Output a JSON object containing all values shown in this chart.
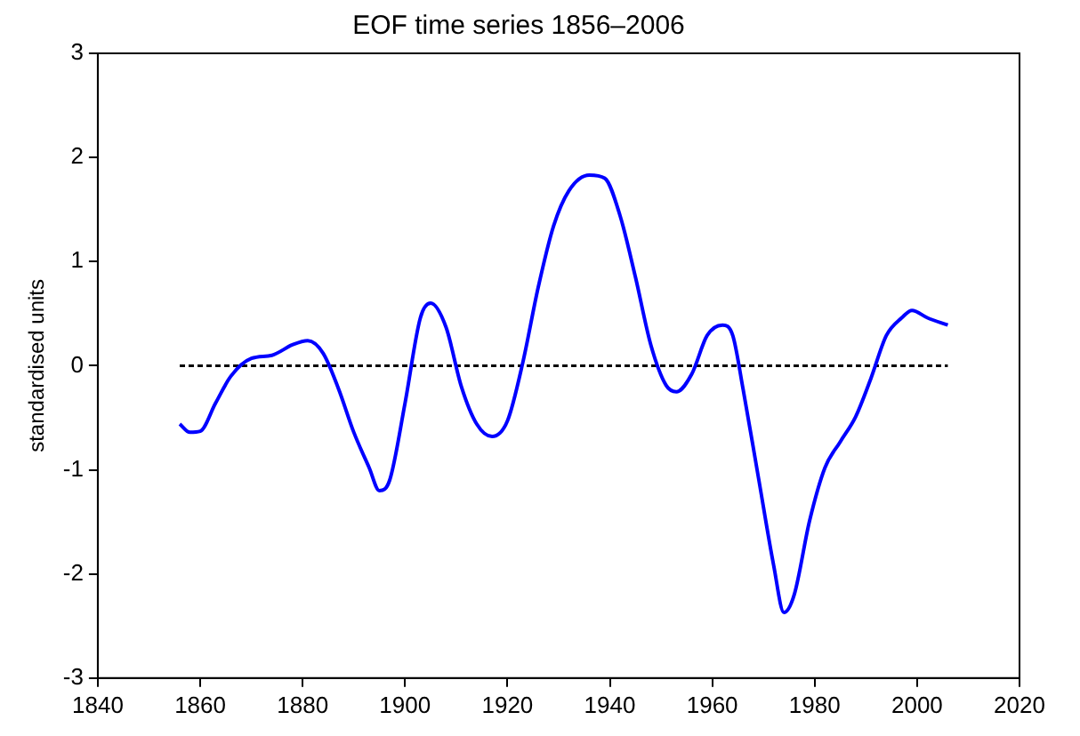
{
  "chart_data": {
    "type": "line",
    "title": "EOF time series 1856–2006",
    "ylabel": "standardised units",
    "xlim": [
      1840,
      2020
    ],
    "xticks": [
      1840,
      1860,
      1880,
      1900,
      1920,
      1940,
      1960,
      1980,
      2000,
      2020
    ],
    "ylim": [
      -3,
      3
    ],
    "yticks": [
      -3,
      -2,
      -1,
      0,
      1,
      2,
      3
    ],
    "grid": false,
    "legend": false,
    "marker": "none",
    "series": [
      {
        "color": "#0000ff",
        "line_style": "solid",
        "x": [
          1856,
          1858,
          1860,
          1863,
          1866,
          1870,
          1874,
          1878,
          1881,
          1884,
          1887,
          1890,
          1893,
          1895,
          1897,
          1900,
          1903,
          1905,
          1908,
          1911,
          1914,
          1917,
          1920,
          1923,
          1926,
          1929,
          1932,
          1936,
          1939,
          1942,
          1945,
          1948,
          1951,
          1953,
          1956,
          1959,
          1962,
          1964,
          1966,
          1969,
          1972,
          1974,
          1976,
          1979,
          1982,
          1985,
          1988,
          1991,
          1994,
          1997,
          1999,
          2002,
          2006
        ],
        "values": [
          -0.56,
          -0.64,
          -0.63,
          -0.36,
          -0.1,
          0.07,
          0.1,
          0.2,
          0.24,
          0.12,
          -0.22,
          -0.64,
          -0.98,
          -1.2,
          -1.1,
          -0.36,
          0.46,
          0.6,
          0.37,
          -0.2,
          -0.56,
          -0.68,
          -0.53,
          0.03,
          0.75,
          1.34,
          1.68,
          1.83,
          1.8,
          1.44,
          0.85,
          0.2,
          -0.19,
          -0.25,
          -0.08,
          0.29,
          0.39,
          0.29,
          -0.22,
          -1.07,
          -1.92,
          -2.37,
          -2.2,
          -1.49,
          -0.98,
          -0.73,
          -0.49,
          -0.12,
          0.29,
          0.46,
          0.53,
          0.46,
          0.39
        ]
      },
      {
        "color": "#000000",
        "line_style": "dashed",
        "x": [
          1856,
          2006
        ],
        "values": [
          0,
          0
        ]
      }
    ]
  }
}
